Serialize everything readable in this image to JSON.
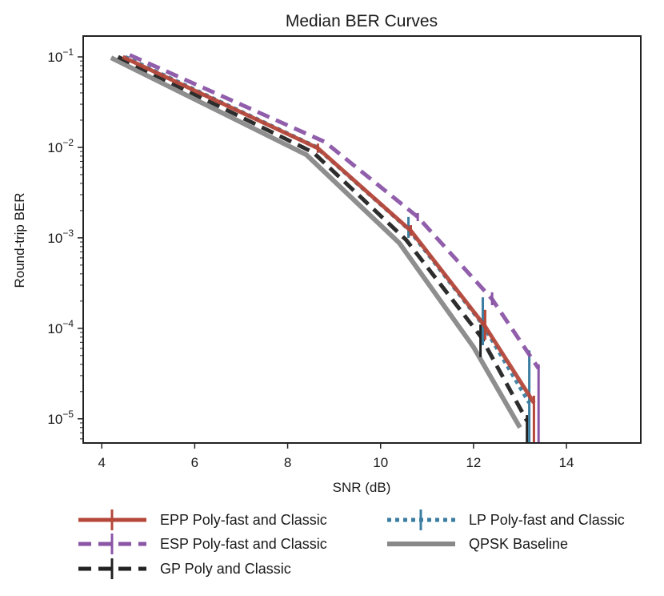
{
  "chart_data": {
    "type": "line",
    "title": "Median BER Curves",
    "xlabel": "SNR (dB)",
    "ylabel": "Round-trip BER",
    "xlim": [
      3.6,
      15.6
    ],
    "ylim": [
      5.4e-06,
      0.17
    ],
    "yscale": "log",
    "grid": false,
    "legend_position": "bottom",
    "x_ticks": [
      4,
      6,
      8,
      10,
      12,
      14
    ],
    "y_ticks": [
      {
        "value": 1e-05,
        "base": "10",
        "exp": "−5"
      },
      {
        "value": 0.0001,
        "base": "10",
        "exp": "−4"
      },
      {
        "value": 0.001,
        "base": "10",
        "exp": "−3"
      },
      {
        "value": 0.01,
        "base": "10",
        "exp": "−2"
      },
      {
        "value": 0.1,
        "base": "10",
        "exp": "−1"
      }
    ],
    "series": [
      {
        "name": "EPP Poly-fast and Classic",
        "color": "#b5473a",
        "style": "solid",
        "width": 5,
        "errorbars": true,
        "points": [
          {
            "x": 4.45,
            "y": 0.1
          },
          {
            "x": 8.65,
            "y": 0.0098,
            "err": [
              0.0087,
              0.011
            ]
          },
          {
            "x": 10.65,
            "y": 0.0012,
            "err": [
              0.00105,
              0.00138
            ]
          },
          {
            "x": 12.25,
            "y": 0.000105,
            "err": [
              7.5e-05,
              0.00016
            ]
          },
          {
            "x": 13.3,
            "y": 1.5e-05,
            "err": [
              5.4e-06,
              1.8e-05
            ]
          }
        ]
      },
      {
        "name": "ESP Poly-fast and Classic",
        "color": "#8b55a6",
        "style": "dashed",
        "width": 5,
        "errorbars": true,
        "points": [
          {
            "x": 4.6,
            "y": 0.105
          },
          {
            "x": 8.8,
            "y": 0.0115
          },
          {
            "x": 10.8,
            "y": 0.0017,
            "err": [
              0.00153,
              0.00188
            ]
          },
          {
            "x": 12.4,
            "y": 0.00021,
            "err": [
              0.00018,
              0.00025
            ]
          },
          {
            "x": 13.4,
            "y": 3.6e-05,
            "err": [
              5.4e-06,
              4e-05
            ]
          }
        ]
      },
      {
        "name": "GP Poly and Classic",
        "color": "#222222",
        "style": "dashed",
        "width": 5,
        "errorbars": true,
        "points": [
          {
            "x": 4.35,
            "y": 0.1
          },
          {
            "x": 8.55,
            "y": 0.0088
          },
          {
            "x": 10.55,
            "y": 0.00095
          },
          {
            "x": 12.15,
            "y": 8.2e-05,
            "err": [
              4.8e-05,
              0.00011
            ]
          },
          {
            "x": 13.15,
            "y": 9.5e-06,
            "err": [
              5.4e-06,
              1.1e-05
            ]
          }
        ]
      },
      {
        "name": "LP Poly-fast and Classic",
        "color": "#3b7ea1",
        "style": "dotted",
        "width": 5,
        "errorbars": true,
        "points": [
          {
            "x": 4.5,
            "y": 0.1
          },
          {
            "x": 8.6,
            "y": 0.0102
          },
          {
            "x": 10.6,
            "y": 0.00125,
            "err": [
              0.001,
              0.0017
            ]
          },
          {
            "x": 12.2,
            "y": 0.00011,
            "err": [
              6.5e-05,
              0.00022
            ]
          },
          {
            "x": 13.2,
            "y": 1.5e-05,
            "err": [
              5.4e-06,
              5.7e-05
            ]
          }
        ]
      },
      {
        "name": "QPSK Baseline",
        "color": "#888888",
        "style": "solid",
        "width": 6,
        "errorbars": false,
        "points": [
          {
            "x": 4.2,
            "y": 0.098
          },
          {
            "x": 8.4,
            "y": 0.0083
          },
          {
            "x": 10.4,
            "y": 0.00088
          },
          {
            "x": 12.0,
            "y": 6.2e-05
          },
          {
            "x": 13.0,
            "y": 8e-06
          }
        ]
      }
    ],
    "legend": [
      "EPP Poly-fast and Classic",
      "ESP Poly-fast and Classic",
      "GP Poly and Classic",
      "LP Poly-fast and Classic",
      "QPSK Baseline"
    ]
  }
}
